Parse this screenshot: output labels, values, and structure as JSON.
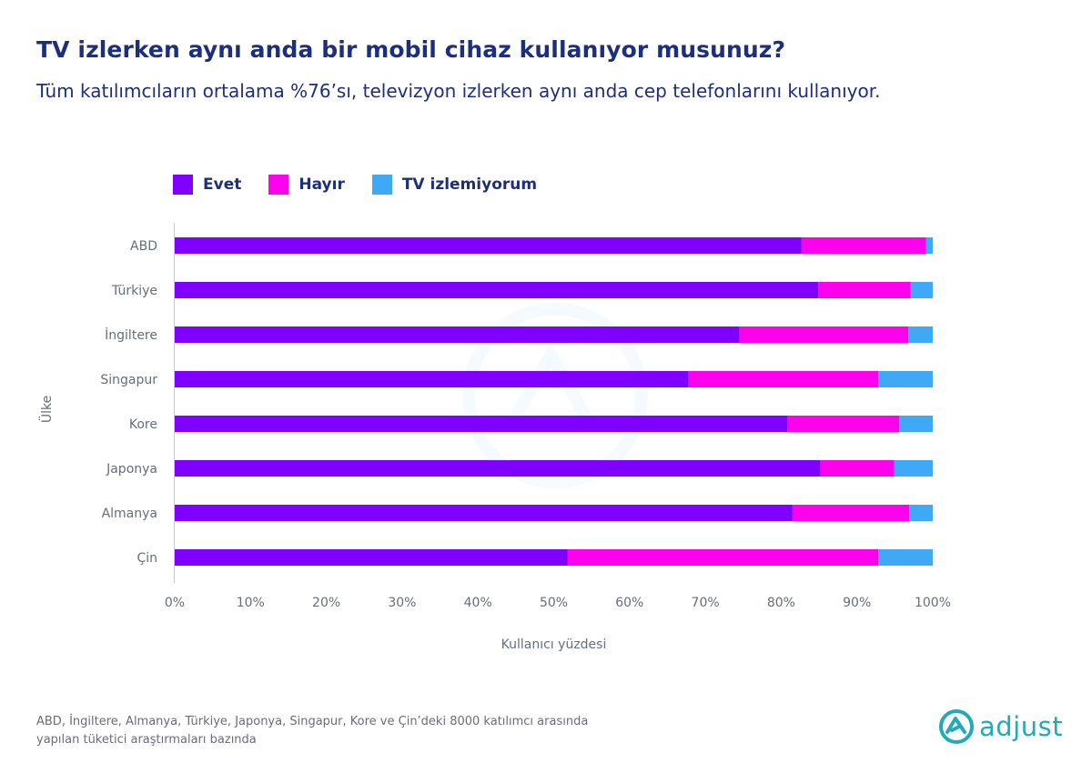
{
  "title": "TV izlerken aynı anda bir mobil cihaz kullanıyor musunuz?",
  "subtitle": "Tüm katılımcıların ortalama %76’sı, televizyon izlerken aynı anda cep telefonlarını kullanıyor.",
  "footnote": {
    "line1": "ABD, İngiltere, Almanya, Türkiye, Japonya, Singapur, Kore ve Çin’deki 8000 katılımcı arasında",
    "line2": "yapılan tüketici araştırmaları bazında"
  },
  "logo": {
    "text": "adjust",
    "icon": "adjust-logo-icon"
  },
  "colors": {
    "evet": "#8000ff",
    "hayir": "#ff00ee",
    "tv": "#3fa9f5",
    "text": "#1d2f7a",
    "axis": "#666e7a"
  },
  "chart_data": {
    "type": "bar",
    "orientation": "horizontal",
    "stacked": true,
    "categories": [
      "ABD",
      "Türkiye",
      "İngiltere",
      "Singapur",
      "Kore",
      "Japonya",
      "Almanya",
      "Çin"
    ],
    "series": [
      {
        "name": "Evet",
        "color": "#8000ff",
        "values": [
          82.7,
          84.9,
          74.5,
          67.8,
          80.8,
          85.2,
          81.5,
          51.8
        ]
      },
      {
        "name": "Hayır",
        "color": "#ff00ee",
        "values": [
          16.4,
          12.2,
          22.3,
          25.0,
          14.8,
          9.7,
          15.4,
          41.0
        ]
      },
      {
        "name": "TV izlemiyorum",
        "color": "#3fa9f5",
        "values": [
          0.9,
          2.9,
          3.2,
          7.2,
          4.4,
          5.1,
          3.1,
          7.2
        ]
      }
    ],
    "xticks": [
      "0%",
      "10%",
      "20%",
      "30%",
      "40%",
      "50%",
      "60%",
      "70%",
      "80%",
      "90%",
      "100%"
    ],
    "xlim": [
      0,
      100
    ],
    "xlabel": "Kullanıcı yüzdesi",
    "ylabel": "Ülke",
    "grid": false,
    "legend_position": "top-left"
  }
}
